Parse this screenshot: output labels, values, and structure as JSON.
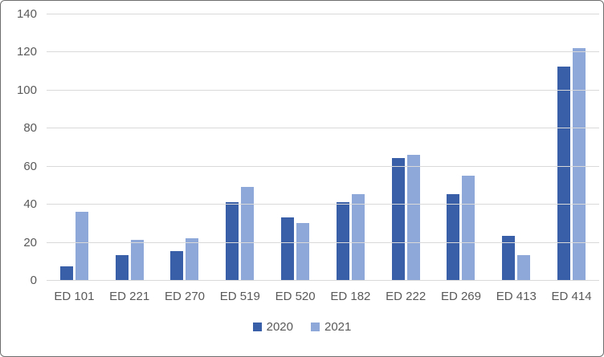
{
  "chart_data": {
    "type": "bar",
    "title": "",
    "xlabel": "",
    "ylabel": "",
    "categories": [
      "ED 101",
      "ED 221",
      "ED 270",
      "ED 519",
      "ED 520",
      "ED 182",
      "ED 222",
      "ED 269",
      "ED 413",
      "ED 414"
    ],
    "series": [
      {
        "name": "2020",
        "color": "#3a5fa9",
        "values": [
          7,
          13,
          15,
          41,
          33,
          41,
          64,
          45,
          23,
          112
        ]
      },
      {
        "name": "2021",
        "color": "#8fa8da",
        "values": [
          36,
          21,
          22,
          49,
          30,
          45,
          66,
          55,
          13,
          122
        ]
      }
    ],
    "ylim": [
      0,
      140
    ],
    "yticks": [
      0,
      20,
      40,
      60,
      80,
      100,
      120,
      140
    ],
    "grid": true,
    "legend_position": "bottom",
    "colors": {
      "gridline": "#d9d9d9",
      "axis_line": "#d9d9d9",
      "tick_label": "#595959",
      "background": "#ffffff",
      "frame_border": "#6e6e6e"
    }
  }
}
